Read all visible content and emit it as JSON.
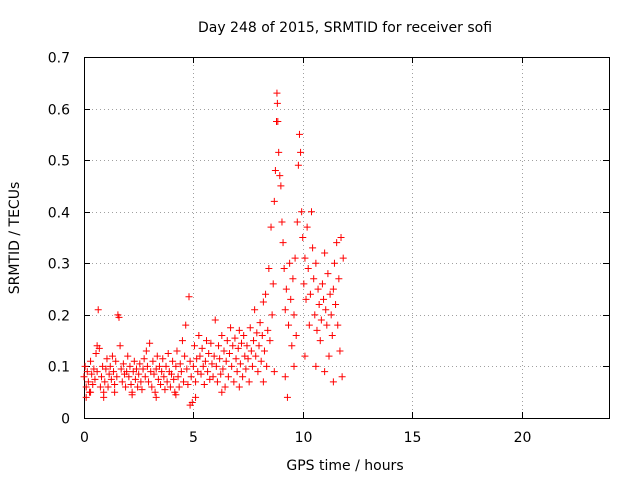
{
  "chart_data": {
    "type": "scatter",
    "title": "Day 248 of 2015, SRMTID for receiver sofi",
    "xlabel": "GPS time / hours",
    "ylabel": "SRMTID / TECUs",
    "xlim": [
      0,
      24
    ],
    "ylim": [
      0,
      0.7
    ],
    "xticks": [
      0,
      5,
      10,
      15,
      20
    ],
    "yticks": [
      0,
      0.1,
      0.2,
      0.3,
      0.4,
      0.5,
      0.6,
      0.7
    ],
    "xtick_labels": [
      "0",
      "5",
      "10",
      "15",
      "20"
    ],
    "ytick_labels": [
      "0",
      "0.1",
      "0.2",
      "0.3",
      "0.4",
      "0.5",
      "0.6",
      "0.7"
    ],
    "grid": true,
    "marker": "+",
    "color": "#ff0000",
    "series": [
      {
        "name": "SRMTID",
        "points": [
          [
            0.0,
            0.08
          ],
          [
            0.05,
            0.1
          ],
          [
            0.1,
            0.06
          ],
          [
            0.15,
            0.09
          ],
          [
            0.2,
            0.07
          ],
          [
            0.25,
            0.05
          ],
          [
            0.3,
            0.11
          ],
          [
            0.35,
            0.085
          ],
          [
            0.4,
            0.065
          ],
          [
            0.45,
            0.095
          ],
          [
            0.5,
            0.075
          ],
          [
            0.55,
            0.125
          ],
          [
            0.6,
            0.09
          ],
          [
            0.65,
            0.21
          ],
          [
            0.7,
            0.135
          ],
          [
            0.75,
            0.06
          ],
          [
            0.8,
            0.08
          ],
          [
            0.85,
            0.1
          ],
          [
            0.9,
            0.05
          ],
          [
            0.95,
            0.07
          ],
          [
            1.0,
            0.095
          ],
          [
            1.05,
            0.115
          ],
          [
            1.1,
            0.06
          ],
          [
            1.15,
            0.085
          ],
          [
            1.2,
            0.1
          ],
          [
            1.25,
            0.075
          ],
          [
            1.3,
            0.12
          ],
          [
            1.35,
            0.09
          ],
          [
            1.4,
            0.065
          ],
          [
            1.45,
            0.11
          ],
          [
            1.5,
            0.08
          ],
          [
            1.55,
            0.2
          ],
          [
            1.6,
            0.195
          ],
          [
            1.65,
            0.14
          ],
          [
            1.7,
            0.095
          ],
          [
            1.75,
            0.07
          ],
          [
            1.8,
            0.105
          ],
          [
            1.85,
            0.085
          ],
          [
            1.9,
            0.06
          ],
          [
            1.95,
            0.09
          ],
          [
            2.0,
            0.12
          ],
          [
            2.05,
            0.08
          ],
          [
            2.1,
            0.1
          ],
          [
            2.15,
            0.065
          ],
          [
            2.2,
            0.05
          ],
          [
            2.25,
            0.09
          ],
          [
            2.3,
            0.11
          ],
          [
            2.35,
            0.075
          ],
          [
            2.4,
            0.095
          ],
          [
            2.45,
            0.06
          ],
          [
            2.5,
            0.085
          ],
          [
            2.55,
            0.105
          ],
          [
            2.6,
            0.07
          ],
          [
            2.65,
            0.055
          ],
          [
            2.7,
            0.095
          ],
          [
            2.75,
            0.115
          ],
          [
            2.8,
            0.08
          ],
          [
            2.85,
            0.13
          ],
          [
            2.9,
            0.1
          ],
          [
            2.95,
            0.07
          ],
          [
            3.0,
            0.145
          ],
          [
            3.05,
            0.09
          ],
          [
            3.1,
            0.06
          ],
          [
            3.15,
            0.11
          ],
          [
            3.2,
            0.085
          ],
          [
            3.25,
            0.05
          ],
          [
            3.3,
            0.095
          ],
          [
            3.35,
            0.12
          ],
          [
            3.4,
            0.075
          ],
          [
            3.45,
            0.1
          ],
          [
            3.5,
            0.065
          ],
          [
            3.55,
            0.09
          ],
          [
            3.6,
            0.115
          ],
          [
            3.65,
            0.08
          ],
          [
            3.7,
            0.055
          ],
          [
            3.75,
            0.1
          ],
          [
            3.8,
            0.07
          ],
          [
            3.85,
            0.125
          ],
          [
            3.9,
            0.09
          ],
          [
            3.95,
            0.06
          ],
          [
            4.0,
            0.085
          ],
          [
            4.05,
            0.11
          ],
          [
            4.1,
            0.075
          ],
          [
            4.15,
            0.05
          ],
          [
            4.2,
            0.1
          ],
          [
            4.25,
            0.13
          ],
          [
            4.3,
            0.08
          ],
          [
            4.35,
            0.06
          ],
          [
            4.4,
            0.105
          ],
          [
            4.45,
            0.09
          ],
          [
            4.5,
            0.15
          ],
          [
            4.55,
            0.07
          ],
          [
            4.6,
            0.12
          ],
          [
            4.65,
            0.18
          ],
          [
            4.7,
            0.095
          ],
          [
            4.75,
            0.065
          ],
          [
            4.8,
            0.235
          ],
          [
            4.85,
            0.11
          ],
          [
            4.9,
            0.08
          ],
          [
            4.95,
            0.03
          ],
          [
            5.0,
            0.1
          ],
          [
            5.05,
            0.14
          ],
          [
            5.1,
            0.07
          ],
          [
            5.15,
            0.115
          ],
          [
            5.2,
            0.09
          ],
          [
            5.25,
            0.16
          ],
          [
            5.3,
            0.12
          ],
          [
            5.35,
            0.085
          ],
          [
            5.4,
            0.135
          ],
          [
            5.45,
            0.1
          ],
          [
            5.5,
            0.065
          ],
          [
            5.55,
            0.11
          ],
          [
            5.6,
            0.15
          ],
          [
            5.65,
            0.09
          ],
          [
            5.7,
            0.125
          ],
          [
            5.75,
            0.075
          ],
          [
            5.8,
            0.145
          ],
          [
            5.85,
            0.105
          ],
          [
            5.9,
            0.08
          ],
          [
            5.95,
            0.12
          ],
          [
            6.0,
            0.19
          ],
          [
            6.05,
            0.1
          ],
          [
            6.1,
            0.07
          ],
          [
            6.15,
            0.14
          ],
          [
            6.2,
            0.115
          ],
          [
            6.25,
            0.085
          ],
          [
            6.3,
            0.16
          ],
          [
            6.35,
            0.095
          ],
          [
            6.4,
            0.13
          ],
          [
            6.45,
            0.06
          ],
          [
            6.5,
            0.11
          ],
          [
            6.55,
            0.15
          ],
          [
            6.6,
            0.08
          ],
          [
            6.65,
            0.125
          ],
          [
            6.7,
            0.175
          ],
          [
            6.75,
            0.1
          ],
          [
            6.8,
            0.14
          ],
          [
            6.85,
            0.07
          ],
          [
            6.9,
            0.155
          ],
          [
            6.95,
            0.115
          ],
          [
            7.0,
            0.09
          ],
          [
            7.05,
            0.135
          ],
          [
            7.1,
            0.17
          ],
          [
            7.15,
            0.105
          ],
          [
            7.2,
            0.145
          ],
          [
            7.25,
            0.08
          ],
          [
            7.3,
            0.16
          ],
          [
            7.35,
            0.12
          ],
          [
            7.4,
            0.095
          ],
          [
            7.45,
            0.14
          ],
          [
            7.5,
            0.115
          ],
          [
            7.55,
            0.07
          ],
          [
            7.6,
            0.175
          ],
          [
            7.65,
            0.13
          ],
          [
            7.7,
            0.1
          ],
          [
            7.75,
            0.15
          ],
          [
            7.8,
            0.21
          ],
          [
            7.85,
            0.12
          ],
          [
            7.9,
            0.165
          ],
          [
            7.95,
            0.09
          ],
          [
            8.0,
            0.14
          ],
          [
            8.05,
            0.185
          ],
          [
            8.1,
            0.11
          ],
          [
            8.15,
            0.16
          ],
          [
            8.2,
            0.225
          ],
          [
            8.25,
            0.13
          ],
          [
            8.3,
            0.24
          ],
          [
            8.35,
            0.1
          ],
          [
            8.4,
            0.17
          ],
          [
            8.45,
            0.29
          ],
          [
            8.5,
            0.15
          ],
          [
            8.55,
            0.37
          ],
          [
            8.6,
            0.2
          ],
          [
            8.65,
            0.26
          ],
          [
            8.7,
            0.42
          ],
          [
            8.75,
            0.48
          ],
          [
            8.8,
            0.575
          ],
          [
            8.82,
            0.63
          ],
          [
            8.84,
            0.61
          ],
          [
            8.86,
            0.575
          ],
          [
            8.9,
            0.515
          ],
          [
            8.95,
            0.47
          ],
          [
            9.0,
            0.45
          ],
          [
            9.05,
            0.38
          ],
          [
            9.1,
            0.34
          ],
          [
            9.15,
            0.29
          ],
          [
            9.2,
            0.21
          ],
          [
            9.25,
            0.25
          ],
          [
            9.3,
            0.04
          ],
          [
            9.35,
            0.18
          ],
          [
            9.4,
            0.3
          ],
          [
            9.45,
            0.23
          ],
          [
            9.5,
            0.14
          ],
          [
            9.55,
            0.27
          ],
          [
            9.6,
            0.2
          ],
          [
            9.65,
            0.31
          ],
          [
            9.7,
            0.16
          ],
          [
            9.75,
            0.38
          ],
          [
            9.8,
            0.49
          ],
          [
            9.85,
            0.55
          ],
          [
            9.9,
            0.515
          ],
          [
            9.95,
            0.4
          ],
          [
            10.0,
            0.35
          ],
          [
            10.05,
            0.26
          ],
          [
            10.1,
            0.31
          ],
          [
            10.15,
            0.23
          ],
          [
            10.2,
            0.37
          ],
          [
            10.25,
            0.29
          ],
          [
            10.3,
            0.18
          ],
          [
            10.35,
            0.24
          ],
          [
            10.4,
            0.4
          ],
          [
            10.45,
            0.33
          ],
          [
            10.5,
            0.27
          ],
          [
            10.55,
            0.2
          ],
          [
            10.6,
            0.3
          ],
          [
            10.65,
            0.17
          ],
          [
            10.7,
            0.25
          ],
          [
            10.75,
            0.22
          ],
          [
            10.8,
            0.15
          ],
          [
            10.85,
            0.19
          ],
          [
            10.9,
            0.26
          ],
          [
            10.95,
            0.23
          ],
          [
            11.0,
            0.32
          ],
          [
            11.05,
            0.21
          ],
          [
            11.1,
            0.18
          ],
          [
            11.15,
            0.28
          ],
          [
            11.2,
            0.12
          ],
          [
            11.25,
            0.24
          ],
          [
            11.3,
            0.2
          ],
          [
            11.35,
            0.16
          ],
          [
            11.4,
            0.25
          ],
          [
            11.45,
            0.3
          ],
          [
            11.5,
            0.22
          ],
          [
            11.55,
            0.34
          ],
          [
            11.6,
            0.18
          ],
          [
            11.65,
            0.27
          ],
          [
            11.7,
            0.13
          ],
          [
            11.75,
            0.35
          ],
          [
            11.8,
            0.08
          ],
          [
            11.85,
            0.31
          ],
          [
            0.1,
            0.04
          ],
          [
            0.3,
            0.05
          ],
          [
            0.6,
            0.14
          ],
          [
            0.9,
            0.04
          ],
          [
            1.4,
            0.05
          ],
          [
            2.2,
            0.045
          ],
          [
            3.3,
            0.04
          ],
          [
            4.2,
            0.045
          ],
          [
            4.85,
            0.025
          ],
          [
            5.1,
            0.04
          ],
          [
            6.3,
            0.05
          ],
          [
            7.1,
            0.06
          ],
          [
            8.2,
            0.07
          ],
          [
            8.7,
            0.09
          ],
          [
            9.2,
            0.08
          ],
          [
            9.6,
            0.1
          ],
          [
            10.1,
            0.12
          ],
          [
            11.0,
            0.09
          ],
          [
            11.4,
            0.07
          ],
          [
            10.6,
            0.1
          ]
        ]
      }
    ]
  }
}
